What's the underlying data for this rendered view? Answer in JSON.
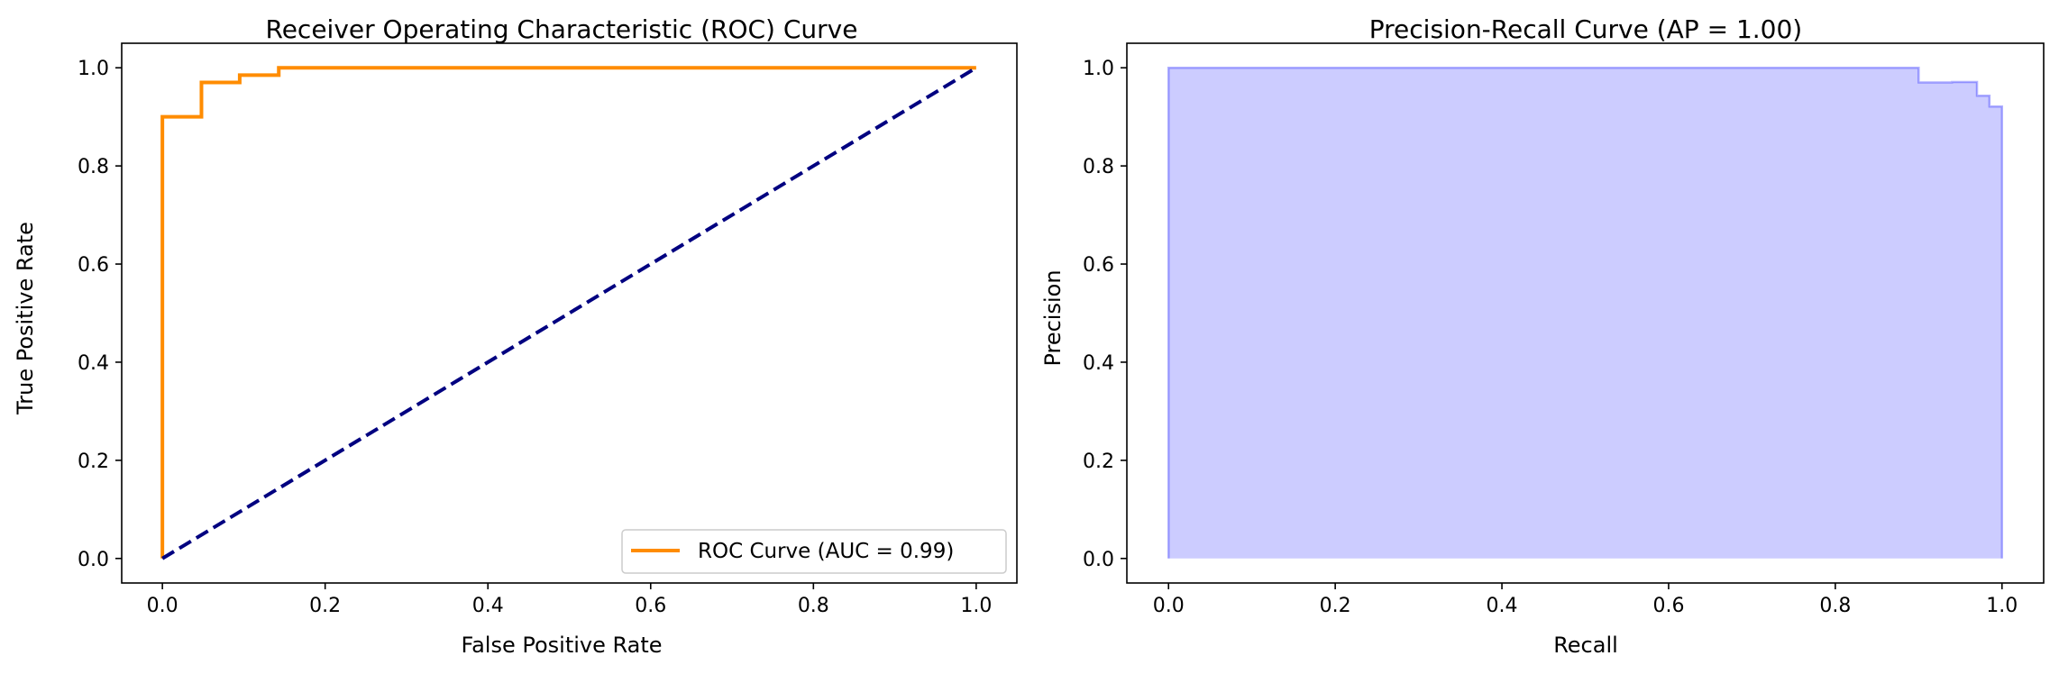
{
  "chart_data": [
    {
      "type": "line",
      "title": "Receiver Operating Characteristic (ROC) Curve",
      "xlabel": "False Positive Rate",
      "ylabel": "True Positive Rate",
      "xlim": [
        -0.05,
        1.05
      ],
      "ylim": [
        -0.05,
        1.05
      ],
      "xticks": [
        "0.0",
        "0.2",
        "0.4",
        "0.6",
        "0.8",
        "1.0"
      ],
      "yticks": [
        "0.0",
        "0.2",
        "0.4",
        "0.6",
        "0.8",
        "1.0"
      ],
      "grid": false,
      "legend_position": "lower-right",
      "series": [
        {
          "name": "ROC Curve (AUC = 0.99)",
          "color": "#ff8c00",
          "style": "solid-step",
          "x": [
            0.0,
            0.0,
            0.048,
            0.048,
            0.095,
            0.095,
            0.143,
            0.143,
            1.0
          ],
          "y": [
            0.0,
            0.9,
            0.9,
            0.97,
            0.97,
            0.985,
            0.985,
            1.0,
            1.0
          ]
        },
        {
          "color": "#000080",
          "style": "dashed",
          "x": [
            0.0,
            1.0
          ],
          "y": [
            0.0,
            1.0
          ]
        }
      ]
    },
    {
      "type": "area",
      "title": "Precision-Recall Curve (AP = 1.00)",
      "xlabel": "Recall",
      "ylabel": "Precision",
      "xlim": [
        -0.05,
        1.05
      ],
      "ylim": [
        -0.05,
        1.05
      ],
      "xticks": [
        "0.0",
        "0.2",
        "0.4",
        "0.6",
        "0.8",
        "1.0"
      ],
      "yticks": [
        "0.0",
        "0.2",
        "0.4",
        "0.6",
        "0.8",
        "1.0"
      ],
      "grid": false,
      "series": [
        {
          "color": "#0000ff",
          "fill_alpha": 0.2,
          "style": "step",
          "x": [
            0.0,
            0.0,
            0.9,
            0.9,
            0.94,
            0.94,
            0.97,
            0.97,
            0.985,
            0.985,
            1.0,
            1.0,
            1.0
          ],
          "y": [
            0.0,
            1.0,
            1.0,
            0.97,
            0.97,
            0.971,
            0.971,
            0.943,
            0.943,
            0.921,
            0.921,
            0.62,
            0.0
          ]
        }
      ]
    }
  ]
}
